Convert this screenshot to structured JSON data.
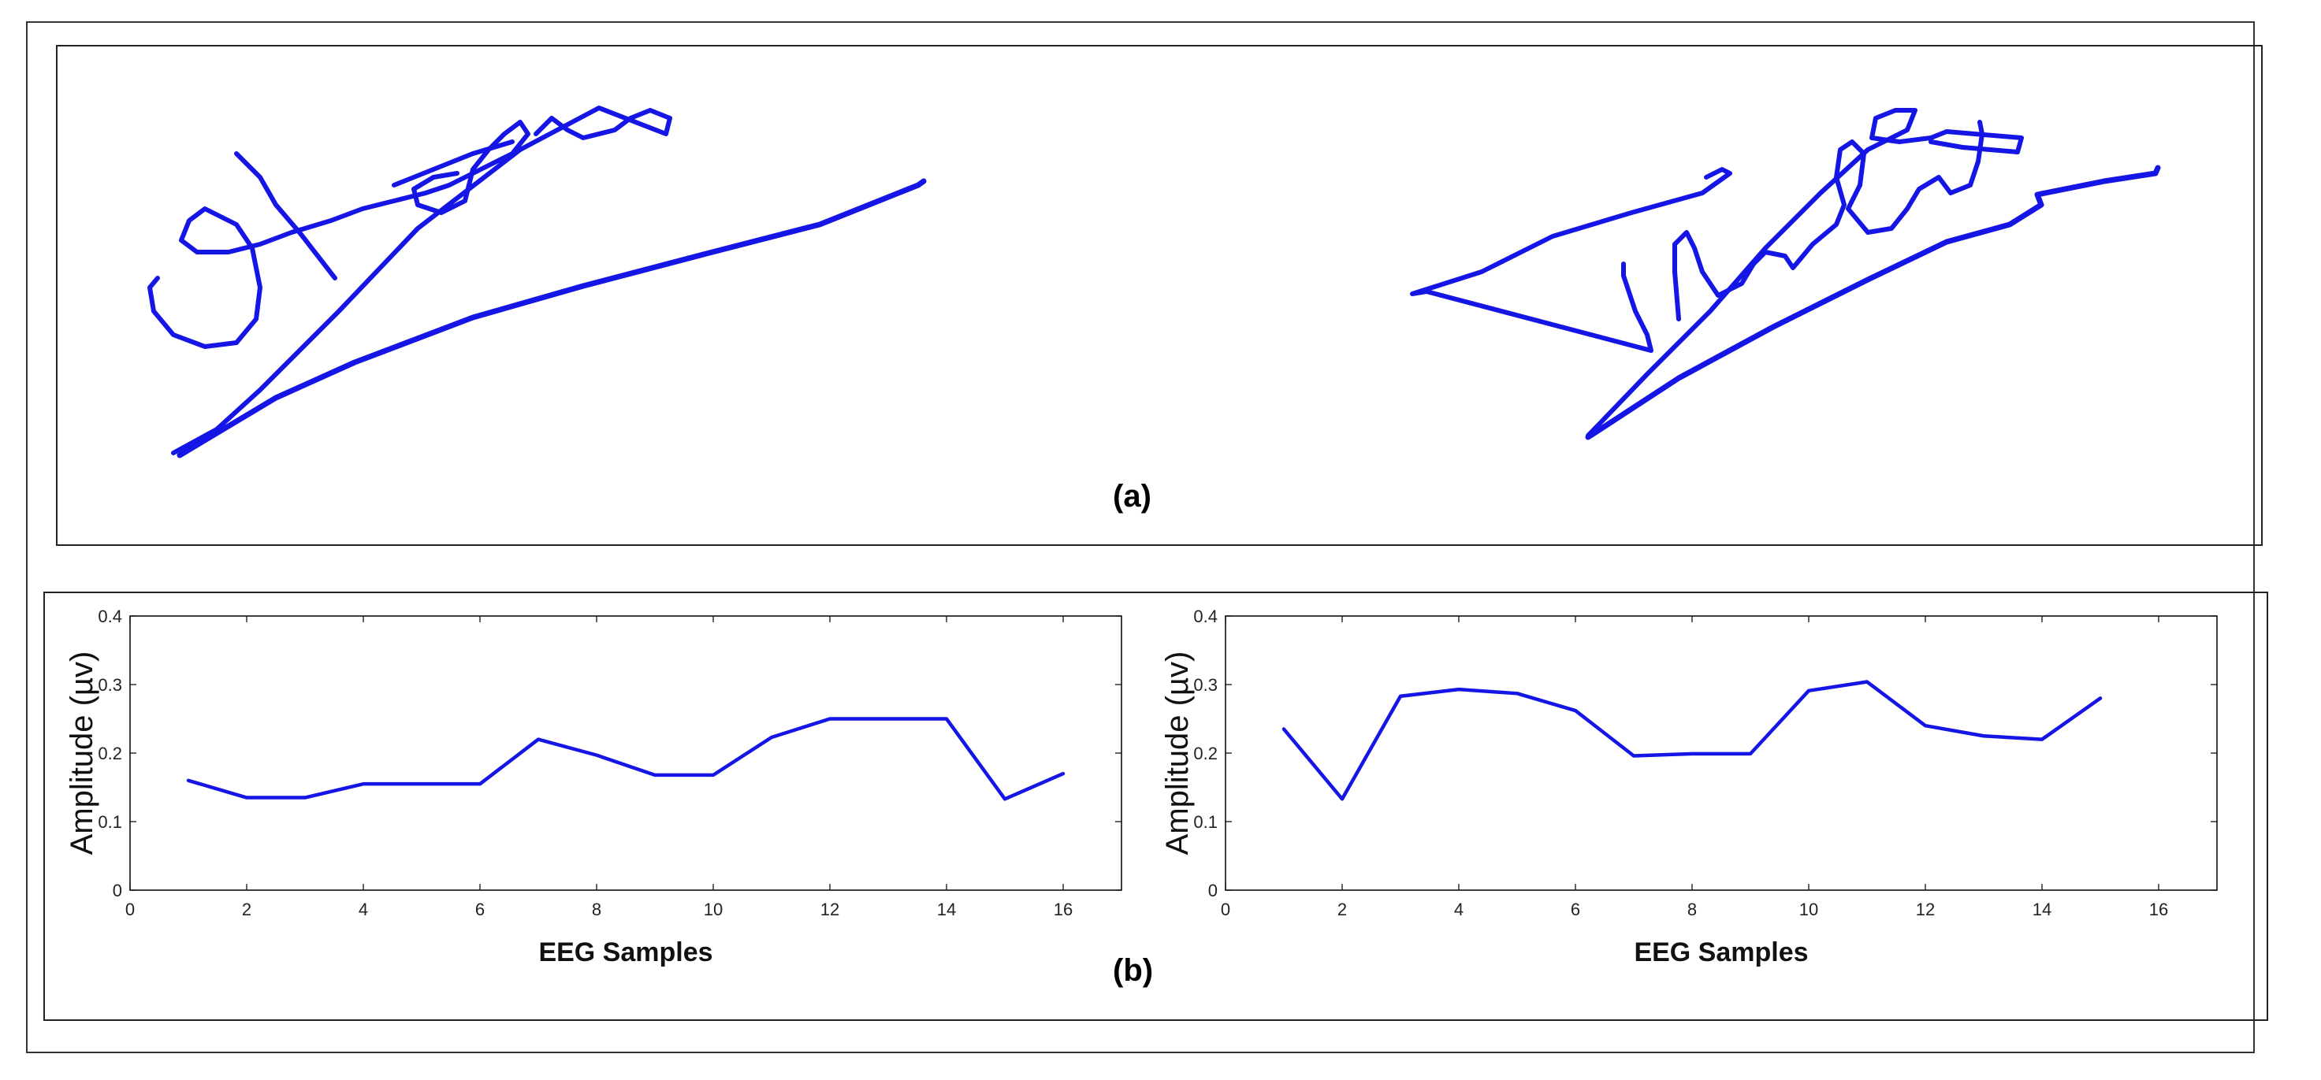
{
  "captions": {
    "a": "(a)",
    "b": "(b)"
  },
  "colors": {
    "ink": "#1515e6",
    "axis": "#000000",
    "frame": "#222222"
  },
  "chart_data": [
    {
      "type": "line",
      "xlabel": "EEG Samples",
      "ylabel": "Amplitude (µv)",
      "xlim": [
        0,
        17
      ],
      "ylim": [
        0,
        0.4
      ],
      "xticks": [
        "0",
        "2",
        "4",
        "6",
        "8",
        "10",
        "12",
        "14",
        "16"
      ],
      "yticks": [
        "0",
        "0.1",
        "0.2",
        "0.3",
        "0.4"
      ],
      "x": [
        1,
        2,
        3,
        4,
        5,
        6,
        7,
        8,
        9,
        10,
        11,
        12,
        13,
        14,
        15,
        16
      ],
      "values": [
        0.16,
        0.135,
        0.135,
        0.155,
        0.155,
        0.155,
        0.22,
        0.197,
        0.168,
        0.168,
        0.223,
        0.25,
        0.25,
        0.25,
        0.133,
        0.17
      ],
      "grid": false
    },
    {
      "type": "line",
      "xlabel": "EEG Samples",
      "ylabel": "Amplitude (µv)",
      "xlim": [
        0,
        17
      ],
      "ylim": [
        0,
        0.4
      ],
      "xticks": [
        "0",
        "2",
        "4",
        "6",
        "8",
        "10",
        "12",
        "14",
        "16"
      ],
      "yticks": [
        "0",
        "0.1",
        "0.2",
        "0.3",
        "0.4"
      ],
      "x": [
        1,
        2,
        3,
        4,
        5,
        6,
        7,
        8,
        9,
        10,
        11,
        12,
        13,
        14,
        15
      ],
      "values": [
        0.235,
        0.133,
        0.283,
        0.293,
        0.287,
        0.262,
        0.196,
        0.199,
        0.199,
        0.291,
        0.304,
        0.24,
        0.225,
        0.22,
        0.28
      ],
      "grid": false
    }
  ]
}
